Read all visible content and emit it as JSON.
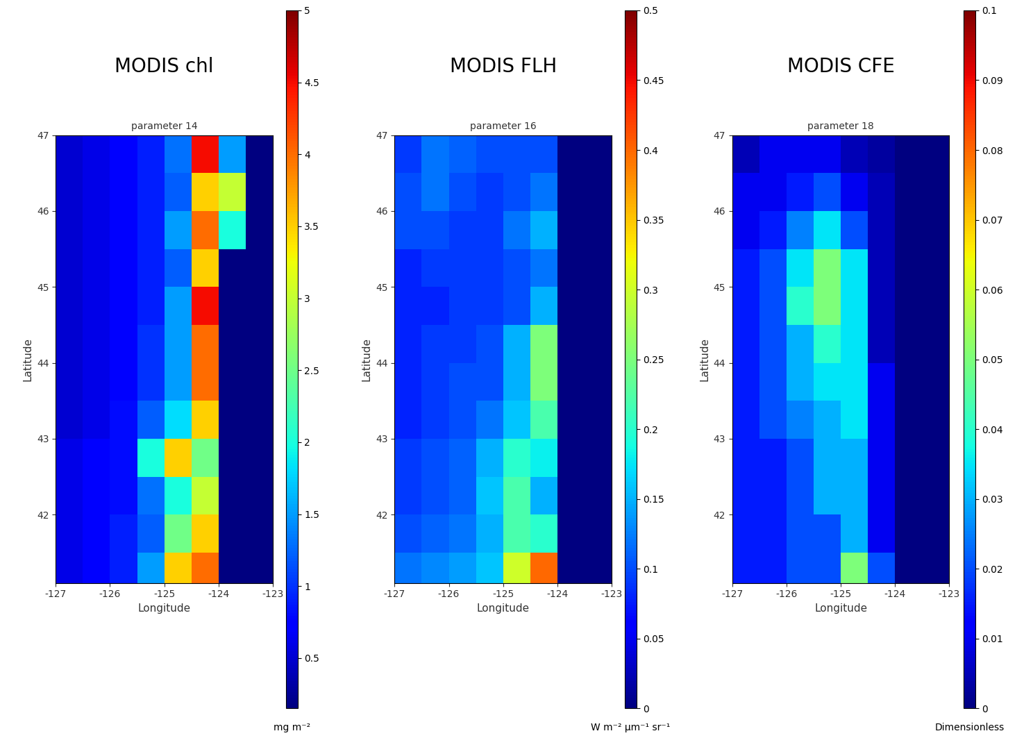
{
  "chart_data": [
    {
      "type": "heatmap",
      "heading": "MODIS chl",
      "title": "parameter 14",
      "x_label": "Longitude",
      "y_label": "Latitude",
      "xlim": [
        -127,
        -123
      ],
      "ylim": [
        41.1,
        47
      ],
      "xticks": [
        -127,
        -126,
        -125,
        -124,
        -123
      ],
      "yticks": [
        42,
        43,
        44,
        45,
        46,
        47
      ],
      "lon_edges": [
        -127,
        -126.5,
        -126,
        -125.5,
        -125,
        -124.5,
        -124,
        -123.5,
        -123
      ],
      "lat_edges": [
        41.1,
        41.5,
        42,
        42.5,
        43,
        43.5,
        44,
        44.5,
        45,
        45.5,
        46,
        46.5,
        47
      ],
      "cells": [
        [
          0.6,
          0.7,
          0.9,
          1.5,
          3.5,
          4.0,
          0.15,
          0.15
        ],
        [
          0.6,
          0.7,
          0.9,
          1.2,
          2.5,
          3.5,
          0.15,
          0.15
        ],
        [
          0.6,
          0.7,
          0.8,
          1.3,
          2.0,
          3.0,
          0.15,
          0.15
        ],
        [
          0.6,
          0.7,
          0.8,
          2.0,
          3.5,
          2.5,
          0.15,
          0.15
        ],
        [
          0.5,
          0.6,
          0.8,
          1.2,
          1.8,
          3.5,
          0.15,
          0.15
        ],
        [
          0.5,
          0.6,
          0.7,
          1.0,
          1.5,
          4.0,
          0.15,
          0.15
        ],
        [
          0.5,
          0.6,
          0.7,
          1.0,
          1.5,
          4.0,
          0.15,
          0.15
        ],
        [
          0.5,
          0.6,
          0.7,
          0.9,
          1.5,
          4.5,
          0.15,
          0.15
        ],
        [
          0.5,
          0.6,
          0.7,
          0.9,
          1.2,
          3.5,
          0.15,
          0.15
        ],
        [
          0.5,
          0.6,
          0.7,
          0.9,
          1.5,
          4.0,
          2.0,
          0.15
        ],
        [
          0.5,
          0.6,
          0.7,
          0.9,
          1.2,
          3.5,
          3.0,
          0.15
        ],
        [
          0.5,
          0.6,
          0.7,
          0.9,
          1.3,
          4.5,
          1.5,
          0.15
        ]
      ],
      "colorbar": {
        "range": [
          0.15,
          5
        ],
        "ticks": [
          0.5,
          1,
          1.5,
          2,
          2.5,
          3,
          3.5,
          4,
          4.5,
          5
        ],
        "label": "mg m⁻²"
      }
    },
    {
      "type": "heatmap",
      "heading": "MODIS FLH",
      "title": "parameter 16",
      "x_label": "Longitude",
      "y_label": "Latitude",
      "xlim": [
        -127,
        -123
      ],
      "ylim": [
        41.1,
        47
      ],
      "xticks": [
        -127,
        -126,
        -125,
        -124,
        -123
      ],
      "yticks": [
        42,
        43,
        44,
        45,
        46,
        47
      ],
      "lon_edges": [
        -127,
        -126.5,
        -126,
        -125.5,
        -125,
        -124.5,
        -124,
        -123.5,
        -123
      ],
      "lat_edges": [
        41.1,
        41.5,
        42,
        42.5,
        43,
        43.5,
        44,
        44.5,
        45,
        45.5,
        46,
        46.5,
        47
      ],
      "cells": [
        [
          0.12,
          0.13,
          0.14,
          0.16,
          0.3,
          0.4,
          0,
          0
        ],
        [
          0.1,
          0.11,
          0.12,
          0.15,
          0.22,
          0.2,
          0,
          0
        ],
        [
          0.09,
          0.1,
          0.11,
          0.16,
          0.22,
          0.15,
          0,
          0
        ],
        [
          0.09,
          0.1,
          0.11,
          0.15,
          0.2,
          0.18,
          0,
          0
        ],
        [
          0.08,
          0.09,
          0.1,
          0.12,
          0.16,
          0.22,
          0,
          0
        ],
        [
          0.08,
          0.09,
          0.1,
          0.1,
          0.15,
          0.25,
          0,
          0
        ],
        [
          0.08,
          0.09,
          0.09,
          0.1,
          0.15,
          0.25,
          0,
          0
        ],
        [
          0.08,
          0.08,
          0.09,
          0.09,
          0.1,
          0.15,
          0,
          0
        ],
        [
          0.08,
          0.09,
          0.09,
          0.09,
          0.1,
          0.12,
          0,
          0
        ],
        [
          0.1,
          0.1,
          0.09,
          0.09,
          0.12,
          0.15,
          0,
          0
        ],
        [
          0.1,
          0.12,
          0.1,
          0.09,
          0.1,
          0.12,
          0,
          0
        ],
        [
          0.09,
          0.12,
          0.11,
          0.1,
          0.1,
          0.1,
          0,
          0
        ]
      ],
      "colorbar": {
        "range": [
          0,
          0.5
        ],
        "ticks": [
          0,
          0.05,
          0.1,
          0.15,
          0.2,
          0.25,
          0.3,
          0.35,
          0.4,
          0.45,
          0.5
        ],
        "label": "W m⁻² µm⁻¹ sr⁻¹"
      }
    },
    {
      "type": "heatmap",
      "heading": "MODIS CFE",
      "title": "parameter 18",
      "x_label": "Longitude",
      "y_label": "Latitude",
      "xlim": [
        -127,
        -123
      ],
      "ylim": [
        41.1,
        47
      ],
      "xticks": [
        -127,
        -126,
        -125,
        -124,
        -123
      ],
      "yticks": [
        42,
        43,
        44,
        45,
        46,
        47
      ],
      "lon_edges": [
        -127,
        -126.5,
        -126,
        -125.5,
        -125,
        -124.5,
        -124,
        -123.5,
        -123
      ],
      "lat_edges": [
        41.1,
        41.5,
        42,
        42.5,
        43,
        43.5,
        44,
        44.5,
        45,
        45.5,
        46,
        46.5,
        47
      ],
      "cells": [
        [
          0.015,
          0.015,
          0.02,
          0.02,
          0.05,
          0.02,
          0,
          0
        ],
        [
          0.015,
          0.015,
          0.02,
          0.02,
          0.03,
          0.01,
          0,
          0
        ],
        [
          0.015,
          0.015,
          0.02,
          0.03,
          0.03,
          0.01,
          0,
          0
        ],
        [
          0.015,
          0.015,
          0.02,
          0.03,
          0.03,
          0.01,
          0,
          0
        ],
        [
          0.015,
          0.02,
          0.025,
          0.03,
          0.035,
          0.01,
          0,
          0
        ],
        [
          0.015,
          0.02,
          0.03,
          0.035,
          0.035,
          0.01,
          0,
          0
        ],
        [
          0.015,
          0.02,
          0.03,
          0.04,
          0.035,
          0.005,
          0,
          0
        ],
        [
          0.015,
          0.02,
          0.04,
          0.05,
          0.035,
          0.005,
          0,
          0
        ],
        [
          0.015,
          0.02,
          0.035,
          0.05,
          0.035,
          0.005,
          0,
          0
        ],
        [
          0.01,
          0.015,
          0.025,
          0.035,
          0.02,
          0.005,
          0,
          0
        ],
        [
          0.01,
          0.01,
          0.015,
          0.02,
          0.01,
          0.005,
          0,
          0
        ],
        [
          0.005,
          0.01,
          0.01,
          0.01,
          0.005,
          0.003,
          0,
          0
        ]
      ],
      "colorbar": {
        "range": [
          0,
          0.1
        ],
        "ticks": [
          0,
          0.01,
          0.02,
          0.03,
          0.04,
          0.05,
          0.06,
          0.07,
          0.08,
          0.09,
          0.1
        ],
        "label": "Dimensionless"
      }
    }
  ]
}
